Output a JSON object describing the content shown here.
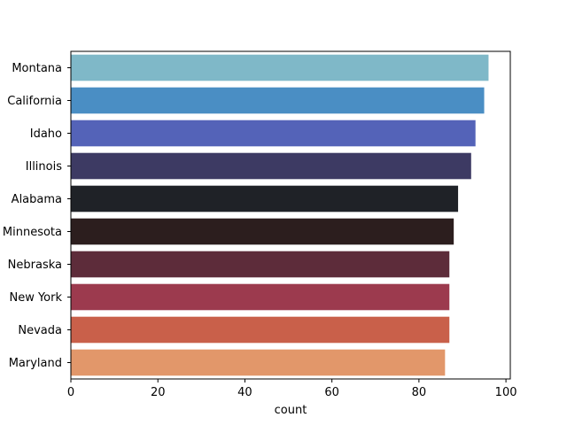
{
  "chart_data": {
    "type": "bar",
    "orientation": "horizontal",
    "categories": [
      "Montana",
      "California",
      "Idaho",
      "Illinois",
      "Alabama",
      "Minnesota",
      "Nebraska",
      "New York",
      "Nevada",
      "Maryland"
    ],
    "values": [
      96,
      95,
      93,
      92,
      89,
      88,
      87,
      87,
      87,
      86
    ],
    "colors": [
      "#7fb8c8",
      "#4a8ec4",
      "#5463b8",
      "#3d3a63",
      "#1f2227",
      "#2c1e1e",
      "#5d2c3a",
      "#9c3a4e",
      "#c9604a",
      "#e2976a"
    ],
    "title": "",
    "xlabel": "count",
    "ylabel": "",
    "xlim": [
      0,
      101
    ],
    "xticks": [
      0,
      20,
      40,
      60,
      80,
      100
    ],
    "grid": false,
    "legend": "none"
  }
}
